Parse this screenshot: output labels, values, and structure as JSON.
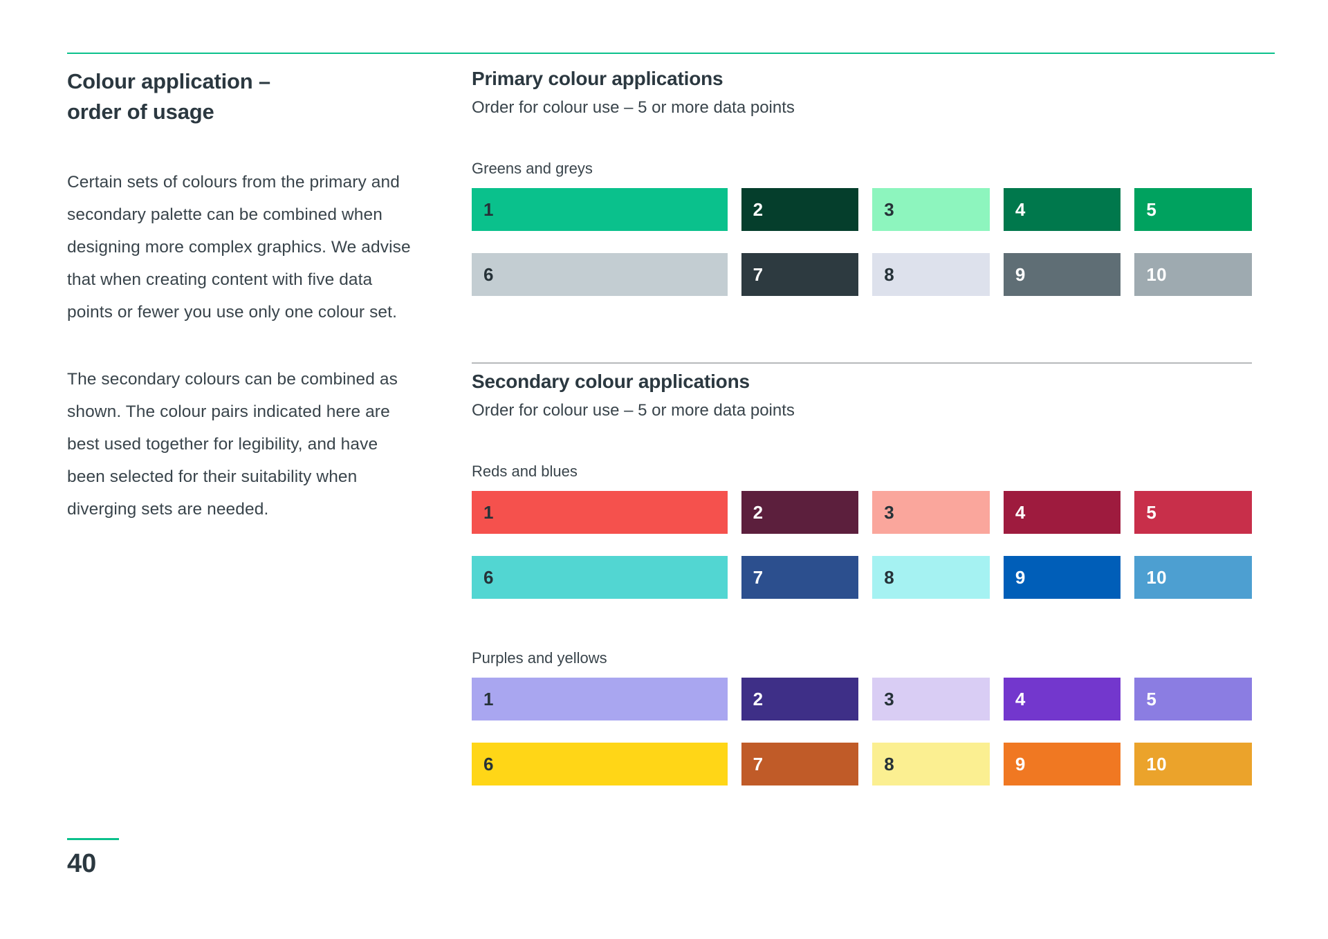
{
  "page": {
    "number": "40"
  },
  "colors": {
    "accent_green": "#0BC18C",
    "divider_grey": "#B6B9BB",
    "ink": "#2b3840",
    "swatch_dark_text": "#263238"
  },
  "left_column": {
    "title_lines": [
      "Colour application –",
      "order of usage"
    ],
    "paragraphs": [
      "Certain sets of colours from the primary and secondary palette can be combined when designing more complex graphics. We advise that when creating content with five data points or fewer you use only one colour set.",
      "The secondary colours can be combined as shown. The colour pairs indicated here are best used together for legibility, and have been selected for their suitability when diverging sets are needed."
    ]
  },
  "sections": [
    {
      "title": "Primary colour applications",
      "subtitle": "Order for colour use – 5 or more data points",
      "groups": [
        {
          "label": "Greens and greys",
          "rows": [
            [
              {
                "n": "1",
                "bg": "#0AC18C",
                "fg": "dark"
              },
              {
                "n": "2",
                "bg": "#053E2C",
                "fg": "light"
              },
              {
                "n": "3",
                "bg": "#8DF5BE",
                "fg": "dark"
              },
              {
                "n": "4",
                "bg": "#00784C",
                "fg": "light"
              },
              {
                "n": "5",
                "bg": "#00A25F",
                "fg": "light"
              }
            ],
            [
              {
                "n": "6",
                "bg": "#C3CDD2",
                "fg": "dark"
              },
              {
                "n": "7",
                "bg": "#2D3A40",
                "fg": "light"
              },
              {
                "n": "8",
                "bg": "#DDE1EC",
                "fg": "dark"
              },
              {
                "n": "9",
                "bg": "#5F6E75",
                "fg": "light"
              },
              {
                "n": "10",
                "bg": "#9EAAB0",
                "fg": "light"
              }
            ]
          ]
        }
      ]
    },
    {
      "title": "Secondary colour applications",
      "subtitle": "Order for colour use – 5 or more data points",
      "groups": [
        {
          "label": "Reds and blues",
          "rows": [
            [
              {
                "n": "1",
                "bg": "#F5514D",
                "fg": "dark"
              },
              {
                "n": "2",
                "bg": "#5C1F3D",
                "fg": "light"
              },
              {
                "n": "3",
                "bg": "#FAA69C",
                "fg": "dark"
              },
              {
                "n": "4",
                "bg": "#9E1B3E",
                "fg": "light"
              },
              {
                "n": "5",
                "bg": "#C82F4A",
                "fg": "light"
              }
            ],
            [
              {
                "n": "6",
                "bg": "#52D6D2",
                "fg": "dark"
              },
              {
                "n": "7",
                "bg": "#2C4F8E",
                "fg": "light"
              },
              {
                "n": "8",
                "bg": "#A5F2F2",
                "fg": "dark"
              },
              {
                "n": "9",
                "bg": "#005EB8",
                "fg": "light"
              },
              {
                "n": "10",
                "bg": "#4D9FD1",
                "fg": "light"
              }
            ]
          ]
        },
        {
          "label": "Purples and yellows",
          "rows": [
            [
              {
                "n": "1",
                "bg": "#A9A6F0",
                "fg": "dark"
              },
              {
                "n": "2",
                "bg": "#3E2F87",
                "fg": "light"
              },
              {
                "n": "3",
                "bg": "#D9CDF4",
                "fg": "dark"
              },
              {
                "n": "4",
                "bg": "#7337CD",
                "fg": "light"
              },
              {
                "n": "5",
                "bg": "#8B7DE2",
                "fg": "light"
              }
            ],
            [
              {
                "n": "6",
                "bg": "#FFD617",
                "fg": "dark"
              },
              {
                "n": "7",
                "bg": "#C05B28",
                "fg": "light"
              },
              {
                "n": "8",
                "bg": "#FBEF91",
                "fg": "dark"
              },
              {
                "n": "9",
                "bg": "#F07822",
                "fg": "light"
              },
              {
                "n": "10",
                "bg": "#EBA32B",
                "fg": "light"
              }
            ]
          ]
        }
      ]
    }
  ]
}
